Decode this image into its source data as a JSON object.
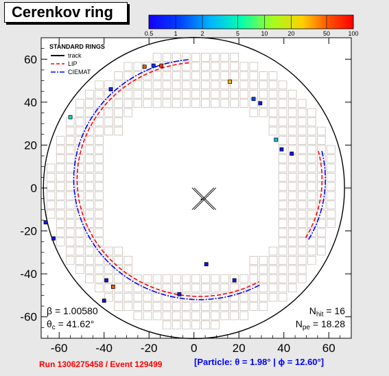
{
  "title": "Cerenkov ring",
  "colorbar": {
    "ticks": [
      "0.5",
      "1",
      "2",
      "5",
      "10",
      "20",
      "50",
      "100"
    ],
    "tick_values": [
      0.5,
      1,
      2,
      5,
      10,
      20,
      50,
      100
    ],
    "min": 0.5,
    "max": 100,
    "scale": "log"
  },
  "legend": {
    "header": "STANDARD RINGS",
    "entries": [
      {
        "label": "track",
        "color": "#000000",
        "style": "solid"
      },
      {
        "label": "LIP",
        "color": "#ff0000",
        "style": "dashed"
      },
      {
        "label": "CIEMAT",
        "color": "#0000ff",
        "style": "dashdot"
      }
    ]
  },
  "stats": {
    "beta_label": "β = 1.00580",
    "theta_label": "θ",
    "theta_sub": "c",
    "theta_value": " = 41.62°",
    "nhit_label": "N",
    "nhit_sub": "hit",
    "nhit_value": " = 16",
    "npe_label": "N",
    "npe_sub": "pe",
    "npe_value": " = 18.28"
  },
  "footer": {
    "run_event": "Run 1306275458 / Event 129499",
    "particle": "[Particle: θ = 1.98° | ϕ = 12.60°]"
  },
  "colors": {
    "frame_bg": "#ffffff",
    "page_bg": "#e8e8e8",
    "pmt": "#c8beb6",
    "lip": "#ff0000",
    "ciemat": "#0000ff",
    "run_text": "#ff0000",
    "particle_text": "#0000ff"
  },
  "chart_data": {
    "type": "scatter",
    "title": "Cerenkov ring",
    "xlim": [
      -68,
      70
    ],
    "ylim": [
      -70,
      70
    ],
    "x_ticks": [
      -60,
      -40,
      -20,
      0,
      20,
      40,
      60
    ],
    "y_ticks": [
      -60,
      -40,
      -20,
      0,
      20,
      40,
      60
    ],
    "mirror_radius": 67,
    "track_point": [
      4,
      -5
    ],
    "rings": [
      {
        "name": "LIP",
        "center": [
          2.5,
          4
        ],
        "radius": 54.5,
        "color": "#ff0000"
      },
      {
        "name": "CIEMAT",
        "center": [
          2.5,
          4
        ],
        "radius": 56.0,
        "color": "#0000ff"
      }
    ],
    "hits": [
      {
        "x": -22,
        "y": 56.5,
        "photoelectrons": 50
      },
      {
        "x": -18,
        "y": 57,
        "photoelectrons": 1
      },
      {
        "x": -14.5,
        "y": 57,
        "photoelectrons": 60
      },
      {
        "x": -37,
        "y": 46,
        "photoelectrons": 0.8
      },
      {
        "x": -55,
        "y": 33,
        "photoelectrons": 4
      },
      {
        "x": 16,
        "y": 49.5,
        "photoelectrons": 30
      },
      {
        "x": 26.5,
        "y": 41.5,
        "photoelectrons": 1.2
      },
      {
        "x": 29.5,
        "y": 39.5,
        "photoelectrons": 0.7
      },
      {
        "x": 36.5,
        "y": 22.5,
        "photoelectrons": 3
      },
      {
        "x": 39,
        "y": 18,
        "photoelectrons": 0.6
      },
      {
        "x": 43.5,
        "y": 16,
        "photoelectrons": 0.6
      },
      {
        "x": -66,
        "y": -16,
        "photoelectrons": 0.7
      },
      {
        "x": -62.5,
        "y": -23.5,
        "photoelectrons": 0.6
      },
      {
        "x": -39,
        "y": -43,
        "photoelectrons": 0.6
      },
      {
        "x": -36,
        "y": -46,
        "photoelectrons": 50
      },
      {
        "x": -40,
        "y": -52.5,
        "photoelectrons": 0.6
      },
      {
        "x": -6.5,
        "y": -49.5,
        "photoelectrons": 0.8
      },
      {
        "x": 5.5,
        "y": -35.5,
        "photoelectrons": 0.6
      },
      {
        "x": 18,
        "y": -43,
        "photoelectrons": 0.7
      }
    ]
  }
}
